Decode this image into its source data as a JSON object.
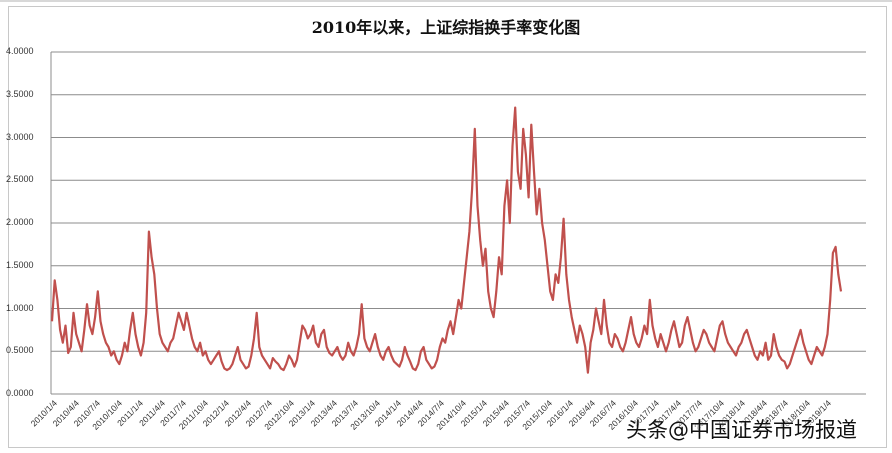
{
  "chart_data": {
    "type": "line",
    "title": "2010年以来，上证综指换手率变化图",
    "xlabel": "",
    "ylabel": "",
    "ylim": [
      0,
      4
    ],
    "yticks": [
      "0.0000",
      "0.5000",
      "1.0000",
      "1.5000",
      "2.0000",
      "2.5000",
      "3.0000",
      "3.5000",
      "4.0000"
    ],
    "grid": "horizontal",
    "legend": "none",
    "line_color": "#c0504d",
    "categories": [
      "2010/1/4",
      "2010/4/4",
      "2010/7/4",
      "2010/10/4",
      "2011/1/4",
      "2011/4/4",
      "2011/7/4",
      "2011/10/4",
      "2012/1/4",
      "2012/4/4",
      "2012/7/4",
      "2012/10/4",
      "2013/1/4",
      "2013/4/4",
      "2013/7/4",
      "2013/10/4",
      "2014/1/4",
      "2014/4/4",
      "2014/7/4",
      "2014/10/4",
      "2015/1/4",
      "2015/4/4",
      "2015/7/4",
      "2015/10/4",
      "2016/1/4",
      "2016/4/4",
      "2016/7/4",
      "2016/10/4",
      "2017/1/4",
      "2017/4/4",
      "2017/7/4",
      "2017/10/4",
      "2018/1/4",
      "2018/4/4",
      "2018/7/4",
      "2018/10/4",
      "2019/1/4"
    ],
    "series": [
      {
        "name": "上证综指换手率",
        "values": [
          0.85,
          1.33,
          1.1,
          0.75,
          0.6,
          0.8,
          0.48,
          0.55,
          0.95,
          0.7,
          0.6,
          0.5,
          0.75,
          1.05,
          0.8,
          0.7,
          0.9,
          1.2,
          0.85,
          0.7,
          0.6,
          0.55,
          0.45,
          0.5,
          0.4,
          0.35,
          0.45,
          0.6,
          0.5,
          0.75,
          0.95,
          0.7,
          0.55,
          0.45,
          0.6,
          0.95,
          1.9,
          1.6,
          1.4,
          1.0,
          0.7,
          0.6,
          0.55,
          0.5,
          0.6,
          0.65,
          0.8,
          0.95,
          0.85,
          0.75,
          0.95,
          0.8,
          0.65,
          0.55,
          0.5,
          0.6,
          0.45,
          0.5,
          0.4,
          0.35,
          0.4,
          0.45,
          0.5,
          0.38,
          0.3,
          0.28,
          0.3,
          0.35,
          0.45,
          0.55,
          0.4,
          0.35,
          0.3,
          0.32,
          0.45,
          0.65,
          0.95,
          0.55,
          0.45,
          0.4,
          0.35,
          0.3,
          0.42,
          0.38,
          0.35,
          0.3,
          0.28,
          0.35,
          0.45,
          0.4,
          0.32,
          0.4,
          0.6,
          0.8,
          0.75,
          0.65,
          0.7,
          0.8,
          0.6,
          0.55,
          0.7,
          0.75,
          0.55,
          0.48,
          0.45,
          0.5,
          0.55,
          0.45,
          0.4,
          0.45,
          0.6,
          0.5,
          0.45,
          0.55,
          0.7,
          1.05,
          0.65,
          0.55,
          0.5,
          0.6,
          0.7,
          0.55,
          0.45,
          0.4,
          0.5,
          0.55,
          0.45,
          0.38,
          0.35,
          0.32,
          0.4,
          0.55,
          0.45,
          0.38,
          0.3,
          0.28,
          0.35,
          0.5,
          0.55,
          0.4,
          0.35,
          0.3,
          0.32,
          0.4,
          0.55,
          0.65,
          0.6,
          0.75,
          0.85,
          0.7,
          0.9,
          1.1,
          1.0,
          1.3,
          1.6,
          1.9,
          2.4,
          3.1,
          2.2,
          1.8,
          1.5,
          1.7,
          1.2,
          1.0,
          0.9,
          1.2,
          1.6,
          1.4,
          2.2,
          2.5,
          2.0,
          2.9,
          3.35,
          2.6,
          2.4,
          3.1,
          2.8,
          2.3,
          3.15,
          2.6,
          2.1,
          2.4,
          2.0,
          1.8,
          1.5,
          1.2,
          1.1,
          1.4,
          1.3,
          1.6,
          2.05,
          1.4,
          1.1,
          0.9,
          0.75,
          0.6,
          0.8,
          0.7,
          0.55,
          0.25,
          0.6,
          0.75,
          1.0,
          0.85,
          0.7,
          1.1,
          0.8,
          0.6,
          0.55,
          0.7,
          0.65,
          0.55,
          0.5,
          0.6,
          0.75,
          0.9,
          0.7,
          0.6,
          0.55,
          0.65,
          0.8,
          0.7,
          1.1,
          0.8,
          0.65,
          0.55,
          0.7,
          0.6,
          0.5,
          0.6,
          0.75,
          0.85,
          0.7,
          0.55,
          0.6,
          0.8,
          0.9,
          0.75,
          0.6,
          0.5,
          0.55,
          0.65,
          0.75,
          0.7,
          0.6,
          0.55,
          0.5,
          0.65,
          0.8,
          0.85,
          0.7,
          0.6,
          0.55,
          0.5,
          0.45,
          0.55,
          0.6,
          0.7,
          0.75,
          0.65,
          0.55,
          0.45,
          0.4,
          0.5,
          0.45,
          0.6,
          0.4,
          0.45,
          0.7,
          0.55,
          0.45,
          0.4,
          0.38,
          0.3,
          0.35,
          0.45,
          0.55,
          0.65,
          0.75,
          0.6,
          0.5,
          0.4,
          0.35,
          0.45,
          0.55,
          0.5,
          0.45,
          0.55,
          0.7,
          1.1,
          1.65,
          1.72,
          1.4,
          1.2
        ]
      }
    ]
  },
  "watermark": "头条@中国证券市场报道"
}
